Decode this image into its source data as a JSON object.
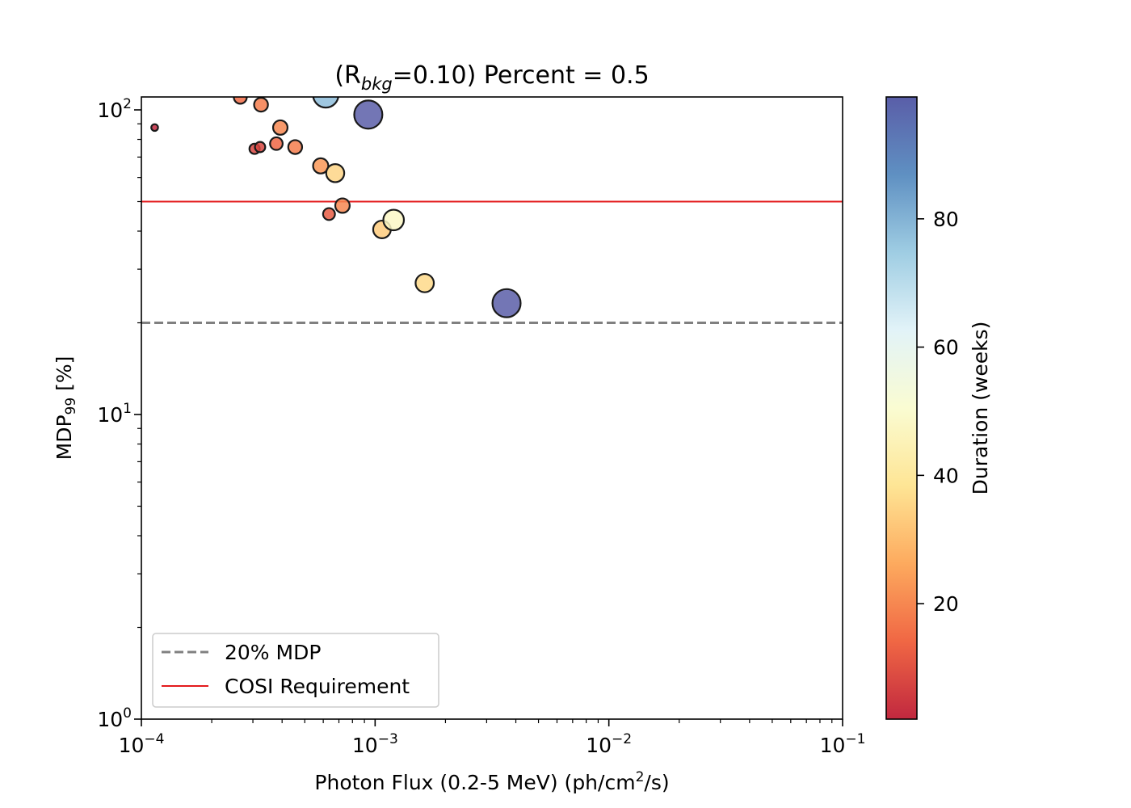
{
  "chart_data": {
    "type": "scatter",
    "title_prefix": "(R",
    "title_subscript": "bkg",
    "title_suffix": "=0.10) Percent = 0.5",
    "xlabel_prefix": "Photon Flux (0.2-5 MeV) (ph/cm",
    "xlabel_superscript": "2",
    "xlabel_suffix": "/s)",
    "ylabel_prefix": "MDP",
    "ylabel_subscript": "99",
    "ylabel_suffix": " [%]",
    "x_scale": "log",
    "y_scale": "log",
    "xlim": [
      0.0001,
      0.1
    ],
    "ylim": [
      1,
      110
    ],
    "x_ticks": [
      {
        "value": 0.0001,
        "base": "10",
        "exp": "−4"
      },
      {
        "value": 0.001,
        "base": "10",
        "exp": "−3"
      },
      {
        "value": 0.01,
        "base": "10",
        "exp": "−2"
      },
      {
        "value": 0.1,
        "base": "10",
        "exp": "−1"
      }
    ],
    "y_ticks": [
      {
        "value": 1,
        "base": "10",
        "exp": "0"
      },
      {
        "value": 10,
        "base": "10",
        "exp": "1"
      },
      {
        "value": 100,
        "base": "10",
        "exp": "2"
      }
    ],
    "grid": false,
    "hlines": [
      {
        "y": 20,
        "label": "20% MDP",
        "color": "#808080",
        "style": "dashed"
      },
      {
        "y": 50,
        "label": "COSI Requirement",
        "color": "#e31a1c",
        "style": "solid"
      }
    ],
    "legend_position": "lower-left",
    "colorbar": {
      "label": "Duration (weeks)",
      "min": 2,
      "max": 99,
      "ticks": [
        20,
        40,
        60,
        80
      ],
      "colormap": "RdYlBu",
      "stops": [
        "#c1283f",
        "#f06744",
        "#fdaa5e",
        "#fee595",
        "#fafcd2",
        "#e2f3f8",
        "#9fcde3",
        "#5f90c2",
        "#5a5ea8"
      ]
    },
    "points": [
      {
        "x": 0.000114,
        "y": 87.5,
        "duration": 2
      },
      {
        "x": 0.000265,
        "y": 110,
        "duration": 15
      },
      {
        "x": 0.000305,
        "y": 74.5,
        "duration": 8
      },
      {
        "x": 0.000322,
        "y": 75.5,
        "duration": 8
      },
      {
        "x": 0.000325,
        "y": 104,
        "duration": 18
      },
      {
        "x": 0.000378,
        "y": 77.5,
        "duration": 14
      },
      {
        "x": 0.000393,
        "y": 87.5,
        "duration": 20
      },
      {
        "x": 0.000455,
        "y": 75.5,
        "duration": 18
      },
      {
        "x": 0.000585,
        "y": 65.5,
        "duration": 23
      },
      {
        "x": 0.000615,
        "y": 112,
        "duration": 78
      },
      {
        "x": 0.000635,
        "y": 45.5,
        "duration": 12
      },
      {
        "x": 0.000675,
        "y": 62,
        "duration": 35
      },
      {
        "x": 0.000725,
        "y": 48.5,
        "duration": 20
      },
      {
        "x": 0.000935,
        "y": 96.5,
        "duration": 99
      },
      {
        "x": 0.00107,
        "y": 40.5,
        "duration": 33
      },
      {
        "x": 0.0012,
        "y": 43.5,
        "duration": 48
      },
      {
        "x": 0.00163,
        "y": 27,
        "duration": 36
      },
      {
        "x": 0.00365,
        "y": 23.2,
        "duration": 99
      }
    ]
  }
}
